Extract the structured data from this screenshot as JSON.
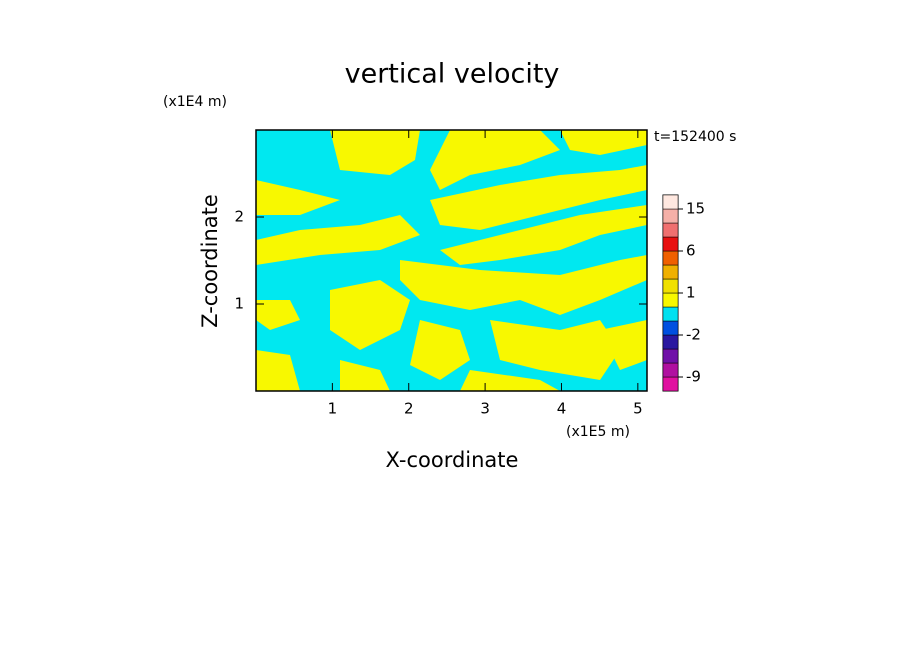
{
  "chart_data": {
    "type": "contour",
    "title": "vertical velocity",
    "x_label": "X-coordinate",
    "y_label": "Z-coordinate",
    "x_unit": "(x1E5 m)",
    "y_unit": "(x1E4 m)",
    "time_label": "t=152400 s",
    "xlim": [
      0,
      5.12
    ],
    "ylim": [
      0,
      3.0
    ],
    "xticks": [
      1,
      2,
      3,
      4,
      5
    ],
    "yticks": [
      1,
      2
    ],
    "colorbar": {
      "levels": [
        -12,
        -9,
        -6,
        -4,
        -2,
        -1,
        0,
        1,
        2,
        3,
        6,
        9,
        12,
        15,
        25
      ],
      "colors": [
        "#e010a0",
        "#b010a0",
        "#7010a8",
        "#2a18a0",
        "#0050e0",
        "#00e0f0",
        "#f8f800",
        "#f0e000",
        "#f0b000",
        "#f06000",
        "#e81010",
        "#f07070",
        "#f5b0a8",
        "#ffe8e0"
      ],
      "ticks": [
        15,
        6,
        1,
        -2,
        -9
      ]
    }
  }
}
